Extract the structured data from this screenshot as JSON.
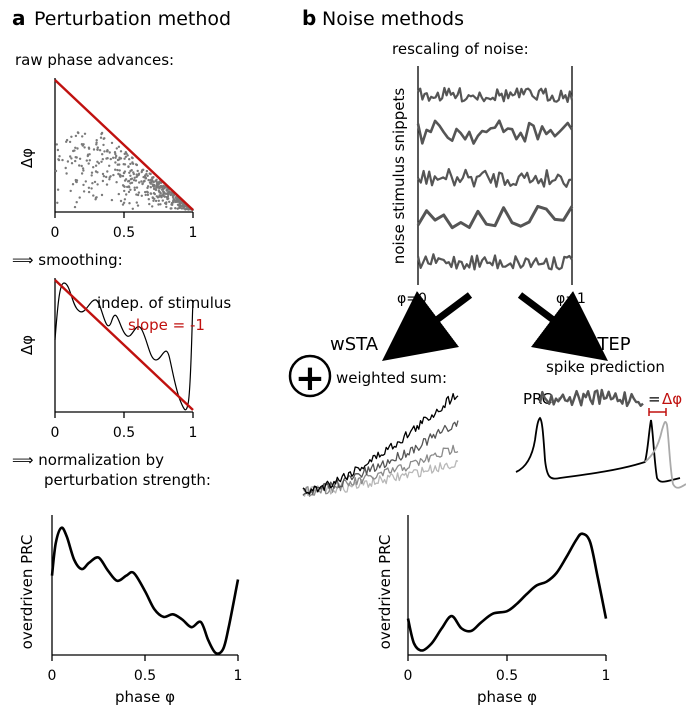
{
  "panel_a": {
    "letter": "a",
    "title": "Perturbation method",
    "raw_label": "raw phase advances:",
    "smoothing_label": "⟹ smoothing:",
    "indep_label": "indep. of stimulus",
    "slope_label": "slope = -1",
    "normalization_label_1": "⟹ normalization by",
    "normalization_label_2": "perturbation strength:",
    "delta_phi": "Δφ",
    "prc_ylabel": "overdriven PRC",
    "phase_xlabel": "phase φ",
    "ticks": [
      "0",
      "0.5",
      "1"
    ]
  },
  "panel_b": {
    "letter": "b",
    "title": "Noise methods",
    "rescaling_label": "rescaling of noise:",
    "snippets_ylabel": "noise stimulus snippets",
    "phi0": "φ=0",
    "phi1": "φ=1",
    "wsta": "wSTA",
    "step": "STEP",
    "weighted_sum": "weighted sum:",
    "plus_symbol": "+",
    "spike_prediction": "spike prediction",
    "prc_prefix": "PRC ·",
    "equals": "=",
    "delta_phi_red": "Δφ",
    "prc_ylabel": "overdriven PRC",
    "phase_xlabel": "phase φ",
    "ticks": [
      "0",
      "0.5",
      "1"
    ]
  },
  "colors": {
    "red": "#c0110f",
    "dark_gray": "#555555",
    "mid_gray": "#8a8a8a",
    "light_gray": "#b8b8b8",
    "black": "#000000"
  },
  "chart_data": [
    {
      "type": "scatter",
      "name": "raw phase advances",
      "xlim": [
        0,
        1
      ],
      "x_ticks": [
        "0",
        "0.5",
        "1"
      ],
      "ylabel": "Δφ",
      "bound_line": {
        "x": [
          0,
          1
        ],
        "y": [
          1,
          0
        ],
        "color": "#c0110f"
      }
    },
    {
      "type": "line",
      "name": "smoothing",
      "xlim": [
        0,
        1
      ],
      "x_ticks": [
        "0",
        "0.5",
        "1"
      ],
      "ylabel": "Δφ",
      "series": [
        {
          "x": [
            0.0,
            0.05,
            0.1,
            0.15,
            0.2,
            0.25,
            0.3,
            0.35,
            0.4,
            0.45,
            0.5,
            0.55,
            0.6,
            0.65,
            0.7,
            0.75,
            0.8,
            0.85,
            0.88,
            0.93,
            0.97,
            1.0
          ],
          "y": [
            0.3,
            0.95,
            0.72,
            0.58,
            0.55,
            0.7,
            0.48,
            0.4,
            0.52,
            0.38,
            0.4,
            0.32,
            0.35,
            0.18,
            0.3,
            0.12,
            0.22,
            0.05,
            0.1,
            0.03,
            0.2,
            0.8
          ]
        },
        {
          "name": "slope = -1",
          "x": [
            0,
            1
          ],
          "y": [
            1,
            0
          ],
          "color": "#c0110f"
        }
      ]
    },
    {
      "type": "line",
      "name": "perturbation overdriven PRC",
      "xlim": [
        0,
        1
      ],
      "x_ticks": [
        "0",
        "0.5",
        "1"
      ],
      "xlabel": "phase φ",
      "ylabel": "overdriven PRC",
      "x": [
        0.0,
        0.02,
        0.05,
        0.08,
        0.12,
        0.16,
        0.2,
        0.25,
        0.3,
        0.35,
        0.4,
        0.44,
        0.5,
        0.55,
        0.6,
        0.65,
        0.7,
        0.75,
        0.8,
        0.84,
        0.88,
        0.92,
        0.95,
        1.0
      ],
      "y": [
        0.6,
        0.85,
        0.97,
        0.9,
        0.72,
        0.65,
        0.7,
        0.74,
        0.64,
        0.56,
        0.6,
        0.62,
        0.48,
        0.34,
        0.28,
        0.3,
        0.26,
        0.2,
        0.24,
        0.1,
        0.0,
        0.03,
        0.2,
        0.57
      ]
    },
    {
      "type": "line",
      "name": "noise overdriven PRC",
      "xlim": [
        0,
        1
      ],
      "x_ticks": [
        "0",
        "0.5",
        "1"
      ],
      "xlabel": "phase φ",
      "ylabel": "overdriven PRC",
      "x": [
        0.0,
        0.03,
        0.07,
        0.12,
        0.17,
        0.22,
        0.27,
        0.32,
        0.37,
        0.43,
        0.5,
        0.55,
        0.6,
        0.65,
        0.7,
        0.75,
        0.8,
        0.85,
        0.88,
        0.92,
        0.96,
        1.0
      ],
      "y": [
        0.28,
        0.08,
        0.02,
        0.08,
        0.2,
        0.3,
        0.2,
        0.18,
        0.25,
        0.32,
        0.34,
        0.4,
        0.48,
        0.55,
        0.58,
        0.65,
        0.78,
        0.92,
        0.97,
        0.9,
        0.6,
        0.28
      ]
    }
  ]
}
